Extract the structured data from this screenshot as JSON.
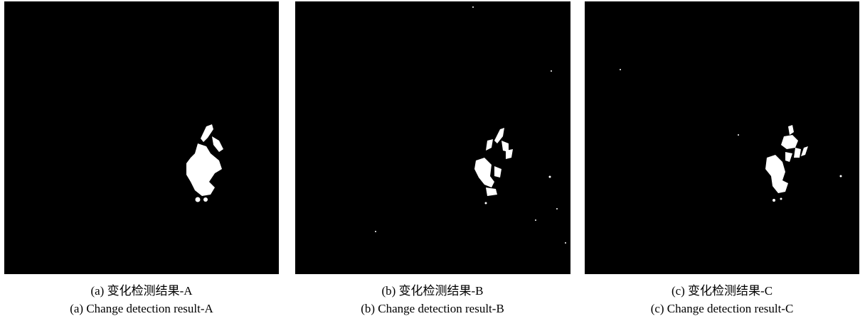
{
  "panels": [
    {
      "caption_cn": "(a) 变化检测结果-A",
      "caption_en": "(a) Change detection result-A"
    },
    {
      "caption_cn": "(b) 变化检测结果-B",
      "caption_en": "(b) Change detection result-B"
    },
    {
      "caption_cn": "(c) 变化检测结果-C",
      "caption_en": "(c) Change detection result-C"
    }
  ]
}
